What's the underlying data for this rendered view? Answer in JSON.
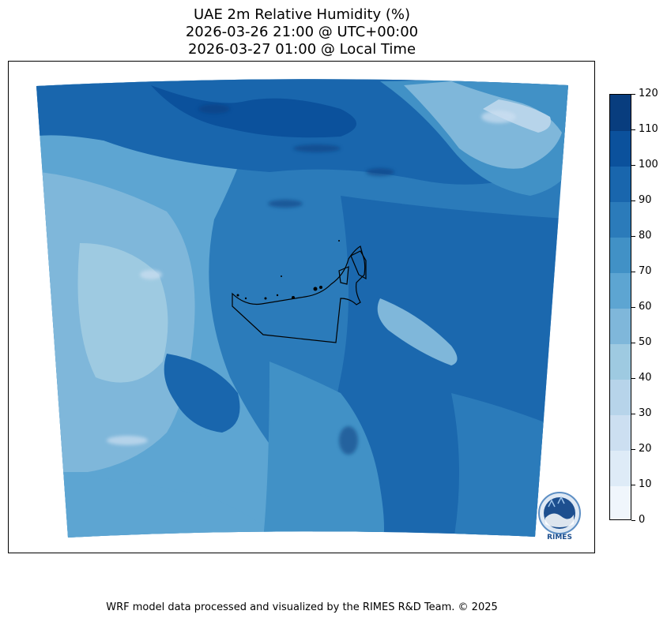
{
  "title": {
    "line1": "UAE 2m Relative Humidity (%)",
    "line2": "2026-03-26 21:00 @ UTC+00:00",
    "line3": "2026-03-27 01:00 @ Local Time"
  },
  "colorbar": {
    "levels": [
      0,
      10,
      20,
      30,
      40,
      50,
      60,
      70,
      80,
      90,
      100,
      110,
      120
    ],
    "tick_labels": [
      "0",
      "10",
      "20",
      "30",
      "40",
      "50",
      "60",
      "70",
      "80",
      "90",
      "100",
      "110",
      "120"
    ],
    "colors": [
      "#f0f6fc",
      "#deebf7",
      "#ccdff1",
      "#b7d4ea",
      "#9ecae1",
      "#7fb7da",
      "#5da5d2",
      "#4191c6",
      "#2b7bba",
      "#1966ad",
      "#0b519c",
      "#083d7e"
    ]
  },
  "logo": {
    "text": "RIMES"
  },
  "footer": "WRF model data processed and visualized by the RIMES R&D Team. © 2025"
}
